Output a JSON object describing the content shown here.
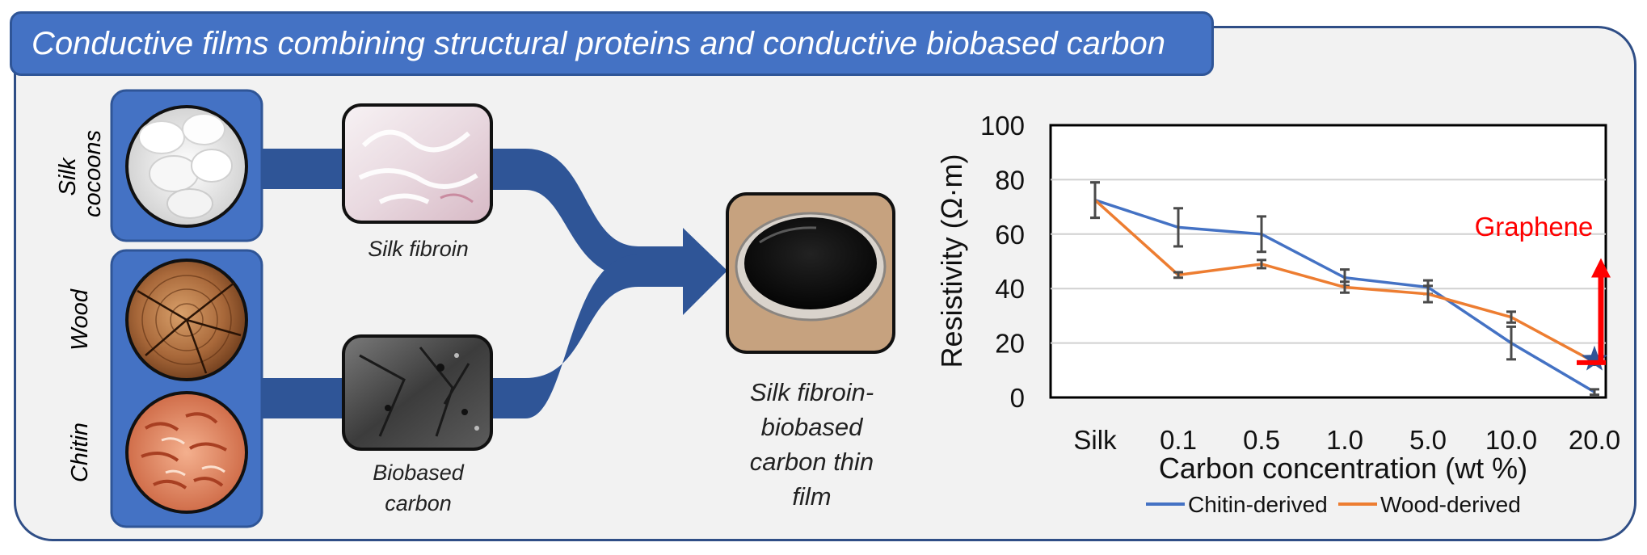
{
  "title": "Conductive films combining structural proteins and conductive biobased carbon",
  "sources": {
    "silk": "Silk cocoons",
    "wood": "Wood",
    "chitin": "Chitin"
  },
  "intermediates": {
    "silk_fibroin": "Silk fibroin",
    "biobased_carbon": "Biobased carbon"
  },
  "product": "Silk fibroin-biobased carbon thin film",
  "colors": {
    "banner": "#4472c4",
    "flow": "#2f5597",
    "chitin_series": "#4472c4",
    "wood_series": "#ed7d31",
    "graphene": "#ff0000"
  },
  "chart_data": {
    "type": "line",
    "xlabel": "Carbon concentration (wt %)",
    "ylabel": "Resistivity (Ω·m)",
    "categories": [
      "Silk",
      "0.1",
      "0.5",
      "1.0",
      "5.0",
      "10.0",
      "20.0"
    ],
    "ylim": [
      0,
      100
    ],
    "yticks": [
      0,
      20,
      40,
      60,
      80,
      100
    ],
    "grid": "horizontal",
    "legend_position": "bottom",
    "series": [
      {
        "name": "Chitin-derived",
        "color": "#4472c4",
        "values": [
          72.5,
          62.5,
          60,
          44,
          40.5,
          20,
          2
        ],
        "errors": [
          6.5,
          7,
          6.5,
          3,
          2.5,
          6,
          1
        ]
      },
      {
        "name": "Wood-derived",
        "color": "#ed7d31",
        "values": [
          72.5,
          45,
          49,
          40.5,
          38,
          29.5,
          13
        ],
        "errors": [
          6.5,
          1,
          1.5,
          2,
          3,
          2,
          1
        ]
      }
    ],
    "annotation": {
      "label": "Graphene",
      "value": 14,
      "arrow_top": 50,
      "color": "#ff0000"
    }
  }
}
